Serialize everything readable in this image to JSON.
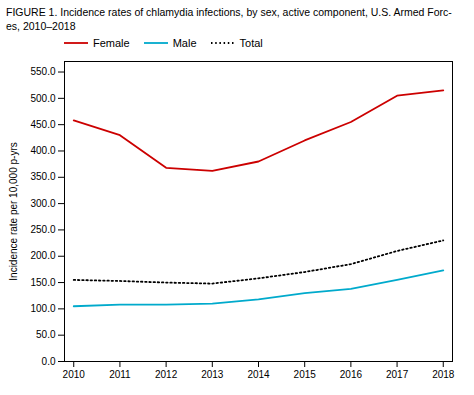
{
  "chart_data": {
    "type": "line",
    "title": "FIGURE 1. Incidence rates of chlamydia infections, by sex, active component, U.S. Armed Forc-\nes, 2010–2018",
    "y_label": "Incidence rate per 10,000 p-yrs",
    "x": [
      2010,
      2011,
      2012,
      2013,
      2014,
      2015,
      2016,
      2017,
      2018
    ],
    "series": [
      {
        "name": "Female",
        "color": "#cc0000",
        "line_style": "solid",
        "values": [
          458,
          430,
          368,
          362,
          380,
          420,
          455,
          505,
          515
        ]
      },
      {
        "name": "Male",
        "color": "#00aacc",
        "line_style": "solid",
        "values": [
          105,
          108,
          108,
          110,
          118,
          130,
          138,
          155,
          173
        ]
      },
      {
        "name": "Total",
        "color": "#000000",
        "line_style": "dotted",
        "values": [
          155,
          153,
          150,
          148,
          158,
          170,
          185,
          210,
          230
        ]
      }
    ],
    "xlim": [
      2009.8,
      2018.2
    ],
    "xticks": [
      2010,
      2011,
      2012,
      2013,
      2014,
      2015,
      2016,
      2017,
      2018
    ],
    "ylim": [
      0,
      570
    ],
    "yticks": [
      {
        "value": 0,
        "label": "0.0"
      },
      {
        "value": 50,
        "label": "50.0"
      },
      {
        "value": 100,
        "label": "100.0"
      },
      {
        "value": 150,
        "label": "150.0"
      },
      {
        "value": 200,
        "label": "200.0"
      },
      {
        "value": 250,
        "label": "250.0"
      },
      {
        "value": 300,
        "label": "300.0"
      },
      {
        "value": 350,
        "label": "350.0"
      },
      {
        "value": 400,
        "label": "400.0"
      },
      {
        "value": 450,
        "label": "450.0"
      },
      {
        "value": 500,
        "label": "500.0"
      },
      {
        "value": 550,
        "label": "550.0"
      }
    ],
    "grid": false,
    "legend": "upper left"
  }
}
